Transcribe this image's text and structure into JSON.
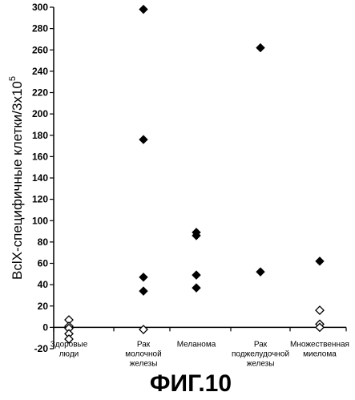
{
  "chart_data": {
    "type": "scatter",
    "title": "",
    "ylabel": "BclX-специфичные клетки/3x10",
    "ylabel_superscript": "5",
    "xlabel": "",
    "ylim": [
      -20,
      300
    ],
    "yticks": [
      -20,
      0,
      20,
      40,
      60,
      80,
      100,
      120,
      140,
      160,
      180,
      200,
      220,
      240,
      260,
      280,
      300
    ],
    "grid": false,
    "categories": [
      [
        "Здоровые",
        "люди"
      ],
      [
        "Рак",
        "молочной",
        "железы"
      ],
      [
        "Меланома"
      ],
      [
        "Рак",
        "поджелудочной",
        "железы"
      ],
      [
        "Множественная",
        "миелома"
      ]
    ],
    "series": [
      {
        "marker": "filled-diamond",
        "points": [
          {
            "x": 2,
            "y": 298
          },
          {
            "x": 2,
            "y": 176
          },
          {
            "x": 2,
            "y": 47
          },
          {
            "x": 2,
            "y": 34
          },
          {
            "x": 3,
            "y": 89
          },
          {
            "x": 3,
            "y": 86
          },
          {
            "x": 3,
            "y": 49
          },
          {
            "x": 3,
            "y": 37
          },
          {
            "x": 4,
            "y": 262
          },
          {
            "x": 4,
            "y": 52
          },
          {
            "x": 5,
            "y": 62
          }
        ]
      },
      {
        "marker": "open-diamond",
        "points": [
          {
            "x": 1,
            "y": 7
          },
          {
            "x": 1,
            "y": 1
          },
          {
            "x": 1,
            "y": -1
          },
          {
            "x": 1,
            "y": -6
          },
          {
            "x": 1,
            "y": -11
          },
          {
            "x": 2,
            "y": -2
          },
          {
            "x": 5,
            "y": 16
          },
          {
            "x": 5,
            "y": 3
          },
          {
            "x": 5,
            "y": 0
          }
        ]
      }
    ]
  },
  "figure_label": "ФИГ.10"
}
